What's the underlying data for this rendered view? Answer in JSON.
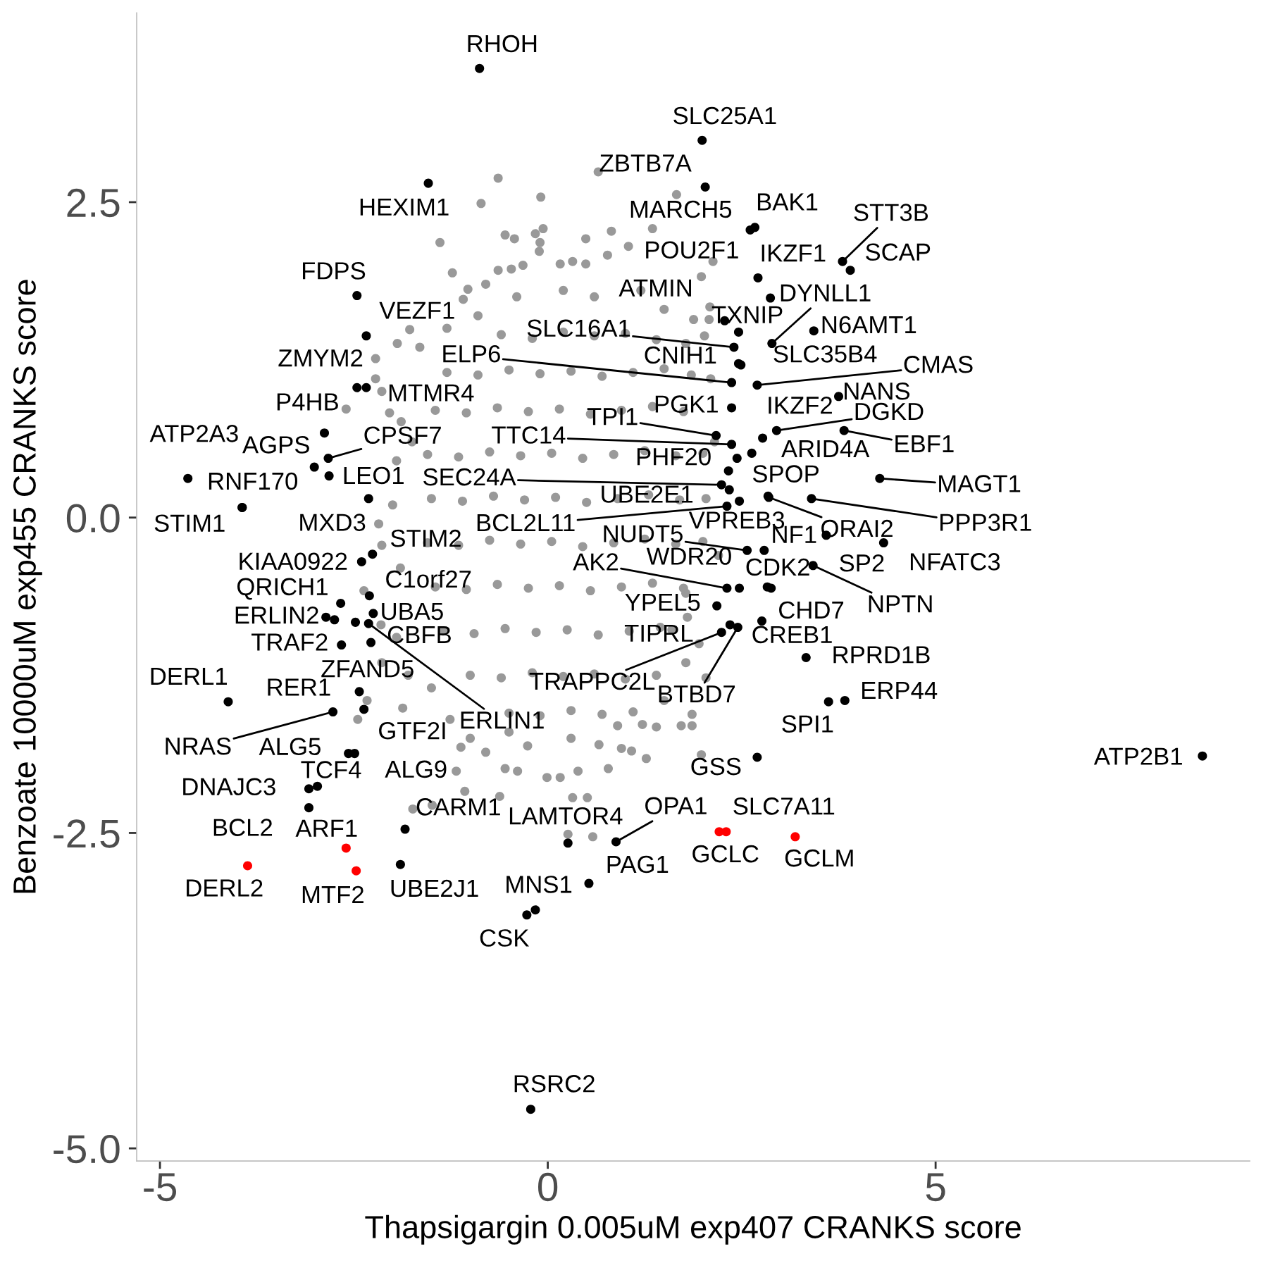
{
  "chart_data": {
    "type": "scatter",
    "xlabel": "Thapsigargin 0.005uM exp407 CRANKS score",
    "ylabel": "Benzoate 10000uM exp455 CRANKS score",
    "xlim": [
      -5.3,
      9.05
    ],
    "ylim": [
      -5.1,
      4.0
    ],
    "xticks": [
      -5,
      0,
      5
    ],
    "yticks": [
      {
        "value": -5,
        "label": "-5.0"
      },
      {
        "value": -2.5,
        "label": "-2.5"
      },
      {
        "value": 0,
        "label": "0.0"
      },
      {
        "value": 2.5,
        "label": "2.5"
      }
    ],
    "grid": false,
    "marker": "circle",
    "series": [
      {
        "color": "#999999",
        "x": [
          -0.64,
          -0.86,
          -0.09,
          0.65,
          -1.39,
          -0.55,
          -0.43,
          -0.16,
          -0.06,
          -0.1,
          0.49,
          0.82,
          -1.23,
          0.77,
          -0.11,
          -0.64,
          -0.47,
          -0.32,
          0.16,
          0.32,
          0.49,
          -0.8,
          -1.03,
          -1.09,
          -1.78,
          -1.94,
          -1.65,
          -2.22,
          -2.22,
          -2.6,
          -2.14,
          -2.04,
          -1.89,
          1.66,
          1.35,
          1.04,
          1.98,
          2.13,
          2.09,
          1.88,
          -2.18,
          -2.14,
          -2.37,
          -2.15,
          -2.14,
          -2.33,
          -2.45,
          -1.87,
          -1.26,
          -1.07,
          -0.62,
          0.32,
          0.51,
          0.26,
          0.58,
          -1.74,
          -1.49,
          -1.18,
          -0.55,
          -0.39,
          -0.01,
          0.16,
          0.39,
          0.78,
          -1.12,
          -0.8,
          -0.26,
          0.66,
          0.95,
          1.22,
          1.4,
          1.72,
          1.86,
          1.86,
          2.04,
          1.08,
          1.27,
          1.98,
          1.78,
          2.04,
          2.02,
          2.08,
          1.78,
          1.78,
          1.8,
          1.6,
          -1.95,
          -2.0,
          -1.9,
          -1.95,
          -1.75,
          -1.8,
          2.15,
          2.2,
          2.1,
          1.95,
          -0.9,
          -0.4,
          0.2,
          0.6,
          1.2,
          1.5,
          -1.3,
          -1.0,
          -0.5,
          0.9,
          0.3,
          1.5,
          -1.5,
          -0.6,
          -0.2,
          0.2,
          0.6,
          1.0,
          1.4,
          -1.3,
          -0.9,
          -0.5,
          -0.1,
          0.3,
          0.7,
          1.1,
          1.5,
          1.85,
          -1.45,
          -1.05,
          -0.65,
          -0.25,
          0.15,
          0.55,
          0.95,
          1.35,
          1.75,
          -1.55,
          -1.15,
          -0.75,
          -0.35,
          0.05,
          0.45,
          0.85,
          1.25,
          1.65,
          2.0,
          -1.5,
          -1.1,
          -0.7,
          -0.3,
          0.1,
          0.5,
          0.9,
          1.3,
          1.7,
          -1.55,
          -1.15,
          -0.75,
          -0.35,
          0.05,
          0.45,
          0.85,
          1.25,
          1.65,
          2.0,
          -1.45,
          -1.05,
          -0.65,
          -0.25,
          0.15,
          0.55,
          0.95,
          1.35,
          1.75,
          -1.35,
          -0.95,
          -0.55,
          -0.15,
          0.25,
          0.65,
          1.05,
          1.45,
          -1.0,
          -0.6,
          -0.2,
          0.2,
          0.6,
          1.0,
          1.4,
          -0.5,
          -0.1,
          0.3,
          0.7,
          1.1
        ],
        "values": [
          2.69,
          2.49,
          2.54,
          2.74,
          2.18,
          2.24,
          2.21,
          2.25,
          2.29,
          2.18,
          2.21,
          2.27,
          1.94,
          2.08,
          2.11,
          1.96,
          1.97,
          2.0,
          2.01,
          2.03,
          2.01,
          1.85,
          1.81,
          1.73,
          1.49,
          1.38,
          1.35,
          1.26,
          1.1,
          0.86,
          1.0,
          0.83,
          0.76,
          2.56,
          2.29,
          2.15,
          1.91,
          2.03,
          1.67,
          1.57,
          -0.05,
          -0.22,
          -0.58,
          -0.85,
          -1.15,
          -1.45,
          -1.6,
          -1.51,
          -1.6,
          -2.17,
          -2.21,
          -2.22,
          -2.22,
          -2.51,
          -2.53,
          -2.31,
          -2.28,
          -2.01,
          -1.99,
          -2.01,
          -2.06,
          -2.06,
          -2.01,
          -1.99,
          -1.82,
          -1.86,
          -1.81,
          -1.8,
          -1.83,
          -1.64,
          -1.66,
          -1.65,
          -1.65,
          -1.56,
          -1.27,
          -1.85,
          -1.91,
          -1.88,
          -1.15,
          0.15,
          1.44,
          1.57,
          1.38,
          -0.6,
          -0.79,
          -0.89,
          0.45,
          0.1,
          -0.4,
          -0.95,
          0.6,
          -1.25,
          0.6,
          -0.3,
          1.1,
          -1.0,
          1.6,
          1.75,
          1.8,
          1.75,
          1.8,
          1.65,
          1.5,
          -1.75,
          -1.7,
          -1.65,
          -1.75,
          -1.45,
          -1.35,
          1.45,
          1.42,
          1.47,
          1.44,
          1.46,
          1.41,
          1.15,
          1.13,
          1.17,
          1.14,
          1.16,
          1.12,
          1.15,
          1.18,
          1.13,
          0.85,
          0.83,
          0.87,
          0.84,
          0.86,
          0.82,
          0.85,
          0.88,
          0.84,
          0.5,
          0.48,
          0.52,
          0.49,
          0.51,
          0.47,
          0.5,
          0.53,
          0.49,
          0.51,
          0.15,
          0.13,
          0.17,
          0.14,
          0.16,
          0.12,
          0.15,
          0.18,
          0.14,
          -0.2,
          -0.22,
          -0.18,
          -0.21,
          -0.19,
          -0.23,
          -0.2,
          -0.17,
          -0.21,
          -0.19,
          -0.55,
          -0.57,
          -0.53,
          -0.56,
          -0.54,
          -0.58,
          -0.55,
          -0.52,
          -0.56,
          -0.9,
          -0.92,
          -0.88,
          -0.91,
          -0.89,
          -0.93,
          -0.9,
          -0.87,
          -1.25,
          -1.27,
          -1.23,
          -1.26,
          -1.24,
          -1.28,
          -1.25,
          -1.55,
          -1.57,
          -1.53,
          -1.56,
          -1.54
        ]
      },
      {
        "color": "#000000",
        "x": [
          -0.88,
          1.99,
          2.03,
          -1.54,
          2.61,
          2.67,
          2.71,
          2.87,
          2.46,
          2.28,
          2.89,
          3.8,
          3.9,
          3.43,
          2.4,
          2.46,
          2.49,
          2.37,
          2.7,
          3.75,
          2.37,
          2.95,
          2.77,
          3.82,
          2.17,
          2.37,
          2.63,
          2.33,
          4.28,
          2.24,
          2.34,
          2.84,
          2.85,
          3.4,
          2.47,
          2.31,
          2.57,
          2.79,
          3.59,
          3.42,
          4.33,
          2.83,
          2.31,
          2.47,
          2.88,
          2.18,
          2.76,
          2.35,
          2.45,
          2.24,
          3.33,
          3.62,
          3.83,
          2.7,
          8.44,
          0.88,
          0.26,
          0.53,
          -0.16,
          -0.27,
          -1.9,
          -1.84,
          -0.22,
          -2.46,
          -2.34,
          -2.46,
          -2.34,
          -2.88,
          -2.83,
          -3.01,
          -2.82,
          -4.64,
          -3.94,
          -3.94,
          -2.31,
          -2.4,
          -2.26,
          -2.3,
          -2.86,
          -2.67,
          -2.25,
          -2.48,
          -2.31,
          -2.66,
          -2.28,
          -2.43,
          -2.37,
          -2.77,
          -4.12,
          -2.57,
          -2.49,
          -2.97,
          -3.08,
          -3.08,
          2.44,
          -2.75
        ],
        "values": [
          3.56,
          2.99,
          2.62,
          2.65,
          2.28,
          2.3,
          1.9,
          1.74,
          1.47,
          1.56,
          1.38,
          2.03,
          1.96,
          1.48,
          1.35,
          1.22,
          1.21,
          1.07,
          1.05,
          0.96,
          0.87,
          0.69,
          0.63,
          0.69,
          0.65,
          0.58,
          0.51,
          0.37,
          0.31,
          0.26,
          0.22,
          0.17,
          0.16,
          0.15,
          0.13,
          0.09,
          -0.26,
          -0.26,
          -0.14,
          -0.38,
          -0.2,
          -0.55,
          -0.56,
          -0.56,
          -0.56,
          -0.7,
          -0.82,
          -0.85,
          -0.87,
          -0.91,
          -1.11,
          -1.46,
          -1.45,
          -1.9,
          -1.89,
          -2.57,
          -2.58,
          -2.9,
          -3.11,
          -3.15,
          -2.75,
          -2.47,
          -4.69,
          1.76,
          1.44,
          1.03,
          1.03,
          0.67,
          0.47,
          0.4,
          0.33,
          0.31,
          0.08,
          0.08,
          0.15,
          -0.35,
          -0.29,
          -0.62,
          -0.79,
          -0.68,
          -0.76,
          -0.83,
          -0.84,
          -1.01,
          -0.99,
          -1.38,
          -1.52,
          -1.54,
          -1.46,
          -1.87,
          -1.87,
          -2.13,
          -2.15,
          -2.3,
          0.47,
          -0.81
        ]
      },
      {
        "color": "#ff0000",
        "x": [
          2.21,
          2.3,
          3.19,
          -2.6,
          -2.47,
          -3.87
        ],
        "values": [
          -2.49,
          -2.49,
          -2.53,
          -2.62,
          -2.8,
          -2.76
        ]
      }
    ],
    "annotations": [
      {
        "text": "RHOH",
        "x": -0.88,
        "y": 3.56
      },
      {
        "text": "SLC25A1",
        "x": 1.99,
        "y": 2.99
      },
      {
        "text": "ZBTB7A",
        "x": 2.03,
        "y": 2.62
      },
      {
        "text": "HEXIM1",
        "x": -1.54,
        "y": 2.65
      },
      {
        "text": "MARCH5",
        "x": 2.61,
        "y": 2.28
      },
      {
        "text": "BAK1",
        "x": 2.67,
        "y": 2.3
      },
      {
        "text": "POU2F1",
        "x": 2.71,
        "y": 1.9
      },
      {
        "text": "IKZF1",
        "x": 2.87,
        "y": 1.74
      },
      {
        "text": "TXNIP",
        "x": 2.46,
        "y": 1.47
      },
      {
        "text": "ATMIN",
        "x": 2.28,
        "y": 1.56
      },
      {
        "text": "DYNLL1",
        "x": 2.89,
        "y": 1.38
      },
      {
        "text": "STT3B",
        "x": 3.8,
        "y": 2.03
      },
      {
        "text": "SCAP",
        "x": 3.9,
        "y": 1.96
      },
      {
        "text": "N6AMT1",
        "x": 3.43,
        "y": 1.48
      },
      {
        "text": "SLC16A1",
        "x": 2.4,
        "y": 1.35
      },
      {
        "text": "CNIH1",
        "x": 2.46,
        "y": 1.22
      },
      {
        "text": "SLC35B4",
        "x": 2.49,
        "y": 1.21
      },
      {
        "text": "ELP6",
        "x": 2.37,
        "y": 1.07
      },
      {
        "text": "CMAS",
        "x": 2.7,
        "y": 1.05
      },
      {
        "text": "NANS",
        "x": 3.75,
        "y": 0.96
      },
      {
        "text": "PGK1",
        "x": 2.37,
        "y": 0.87
      },
      {
        "text": "DGKD",
        "x": 2.95,
        "y": 0.69
      },
      {
        "text": "IKZF2",
        "x": 2.77,
        "y": 0.63
      },
      {
        "text": "EBF1",
        "x": 3.82,
        "y": 0.69
      },
      {
        "text": "TPI1",
        "x": 2.17,
        "y": 0.65
      },
      {
        "text": "TTC14",
        "x": 2.37,
        "y": 0.58
      },
      {
        "text": "ARID4A",
        "x": 2.63,
        "y": 0.51
      },
      {
        "text": "PHF20",
        "x": 2.33,
        "y": 0.37
      },
      {
        "text": "MAGT1",
        "x": 4.28,
        "y": 0.31
      },
      {
        "text": "SEC24A",
        "x": 2.24,
        "y": 0.26
      },
      {
        "text": "UBE2E1",
        "x": 2.34,
        "y": 0.22
      },
      {
        "text": "SPOP",
        "x": 2.84,
        "y": 0.17
      },
      {
        "text": "ORAI2",
        "x": 2.85,
        "y": 0.16
      },
      {
        "text": "PPP3R1",
        "x": 3.4,
        "y": 0.15
      },
      {
        "text": "VPREB3",
        "x": 2.47,
        "y": 0.13
      },
      {
        "text": "BCL2L11",
        "x": 2.31,
        "y": 0.09
      },
      {
        "text": "NUDT5",
        "x": 2.57,
        "y": -0.26
      },
      {
        "text": "NF1",
        "x": 2.79,
        "y": -0.26
      },
      {
        "text": "SP2",
        "x": 3.59,
        "y": -0.14
      },
      {
        "text": "NPTN",
        "x": 3.42,
        "y": -0.38
      },
      {
        "text": "NFATC3",
        "x": 4.33,
        "y": -0.2
      },
      {
        "text": "CDK2",
        "x": 2.83,
        "y": -0.55
      },
      {
        "text": "AK2",
        "x": 2.31,
        "y": -0.56
      },
      {
        "text": "WDR20",
        "x": 2.47,
        "y": -0.56
      },
      {
        "text": "CREB1",
        "x": 2.88,
        "y": -0.56
      },
      {
        "text": "YPEL5",
        "x": 2.18,
        "y": -0.7
      },
      {
        "text": "CHD7",
        "x": 2.76,
        "y": -0.82
      },
      {
        "text": "TIPRL",
        "x": 2.35,
        "y": -0.85
      },
      {
        "text": "BTBD7",
        "x": 2.45,
        "y": -0.87
      },
      {
        "text": "TRAPPC2L",
        "x": 2.24,
        "y": -0.91
      },
      {
        "text": "RPRD1B",
        "x": 3.33,
        "y": -1.11
      },
      {
        "text": "SPI1",
        "x": 3.62,
        "y": -1.46
      },
      {
        "text": "ERP44",
        "x": 3.83,
        "y": -1.45
      },
      {
        "text": "GSS",
        "x": 2.7,
        "y": -1.9
      },
      {
        "text": "ATP2B1",
        "x": 8.44,
        "y": -1.89
      },
      {
        "text": "OPA1",
        "x": 0.88,
        "y": -2.57
      },
      {
        "text": "LAMTOR4",
        "x": 0.26,
        "y": -2.58
      },
      {
        "text": "PAG1",
        "x": 0.53,
        "y": -2.9
      },
      {
        "text": "MNS1",
        "x": -0.16,
        "y": -3.11
      },
      {
        "text": "CSK",
        "x": -0.27,
        "y": -3.15
      },
      {
        "text": "SLC7A11",
        "x": 2.21,
        "y": -2.49
      },
      {
        "text": "GCLC",
        "x": 2.3,
        "y": -2.49
      },
      {
        "text": "GCLM",
        "x": 3.19,
        "y": -2.53
      },
      {
        "text": "UBE2J1",
        "x": -1.9,
        "y": -2.75
      },
      {
        "text": "CARM1",
        "x": -1.84,
        "y": -2.47
      },
      {
        "text": "RSRC2",
        "x": -0.22,
        "y": -4.69
      },
      {
        "text": "FDPS",
        "x": -2.46,
        "y": 1.76
      },
      {
        "text": "VEZF1",
        "x": -2.34,
        "y": 1.44
      },
      {
        "text": "ZMYM2",
        "x": -2.46,
        "y": 1.03
      },
      {
        "text": "MTMR4",
        "x": -2.34,
        "y": 1.03
      },
      {
        "text": "P4HB",
        "x": -2.88,
        "y": 0.67
      },
      {
        "text": "CPSF7",
        "x": -2.83,
        "y": 0.47
      },
      {
        "text": "AGPS",
        "x": -3.01,
        "y": 0.4
      },
      {
        "text": "LEO1",
        "x": -2.82,
        "y": 0.33
      },
      {
        "text": "ATP2A3",
        "x": -4.64,
        "y": 0.31
      },
      {
        "text": "RNF170",
        "x": -3.94,
        "y": 0.08
      },
      {
        "text": "STIM1",
        "x": -3.94,
        "y": 0.08
      },
      {
        "text": "MXD3",
        "x": -2.31,
        "y": 0.15
      },
      {
        "text": "KIAA0922",
        "x": -2.4,
        "y": -0.35
      },
      {
        "text": "STIM2",
        "x": -2.26,
        "y": -0.29
      },
      {
        "text": "C1orf27",
        "x": -2.3,
        "y": -0.62
      },
      {
        "text": "ERLIN2",
        "x": -2.86,
        "y": -0.79
      },
      {
        "text": "QRICH1",
        "x": -2.67,
        "y": -0.68
      },
      {
        "text": "UBA5",
        "x": -2.25,
        "y": -0.76
      },
      {
        "text": "ZFAND5",
        "x": -2.48,
        "y": -0.83
      },
      {
        "text": "ERLIN1",
        "x": -2.31,
        "y": -0.84
      },
      {
        "text": "TRAF2",
        "x": -2.66,
        "y": -1.01
      },
      {
        "text": "CBFB",
        "x": -2.28,
        "y": -0.99
      },
      {
        "text": "RER1",
        "x": -2.43,
        "y": -1.38
      },
      {
        "text": "GTF2I",
        "x": -2.37,
        "y": -1.52
      },
      {
        "text": "NRAS",
        "x": -2.77,
        "y": -1.54
      },
      {
        "text": "DERL1",
        "x": -4.12,
        "y": -1.46
      },
      {
        "text": "ALG5",
        "x": -2.57,
        "y": -1.87
      },
      {
        "text": "ALG9",
        "x": -2.49,
        "y": -1.87
      },
      {
        "text": "TCF4",
        "x": -2.97,
        "y": -2.13
      },
      {
        "text": "DNAJC3",
        "x": -3.08,
        "y": -2.15
      },
      {
        "text": "BCL2",
        "x": -3.08,
        "y": -2.3
      },
      {
        "text": "ARF1",
        "x": -2.6,
        "y": -2.62
      },
      {
        "text": "MTF2",
        "x": -2.47,
        "y": -2.8
      },
      {
        "text": "DERL2",
        "x": -3.87,
        "y": -2.76
      }
    ]
  }
}
